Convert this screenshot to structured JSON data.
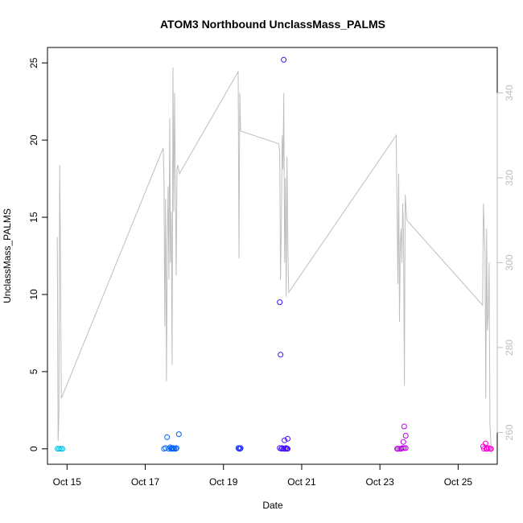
{
  "chart_data": {
    "type": "scatter",
    "title": "ATOM3 Northbound UnclassMass_PALMS",
    "xlabel": "Date",
    "ylabel": "UnclassMass_PALMS",
    "x_ticks": [
      "Oct 15",
      "Oct 17",
      "Oct 19",
      "Oct 21",
      "Oct 23",
      "Oct 25"
    ],
    "y_ticks": [
      "0",
      "5",
      "10",
      "15",
      "20",
      "25"
    ],
    "y2_ticks": [
      "260",
      "280",
      "300",
      "320",
      "340"
    ],
    "xlim": [
      "2023-10-14T12:00",
      "2023-10-26T00:00"
    ],
    "ylim": [
      -1,
      26
    ],
    "y2lim": [
      252.5,
      350.7
    ],
    "grid": false,
    "points": [
      {
        "x": "2023-10-14T18:14",
        "y": 0.0
      },
      {
        "x": "2023-10-14T19:12",
        "y": 0.0
      },
      {
        "x": "2023-10-14T20:10",
        "y": 0.0
      },
      {
        "x": "2023-10-14T21:07",
        "y": 0.0
      },
      {
        "x": "2023-10-17T11:31",
        "y": 0.0
      },
      {
        "x": "2023-10-17T12:29",
        "y": 0.05
      },
      {
        "x": "2023-10-17T13:26",
        "y": 0.75
      },
      {
        "x": "2023-10-17T14:24",
        "y": 0.0
      },
      {
        "x": "2023-10-17T15:22",
        "y": 0.1
      },
      {
        "x": "2023-10-17T15:50",
        "y": 0.0
      },
      {
        "x": "2023-10-17T16:19",
        "y": 0.05
      },
      {
        "x": "2023-10-17T16:48",
        "y": 0.0
      },
      {
        "x": "2023-10-17T17:17",
        "y": 0.05
      },
      {
        "x": "2023-10-17T17:46",
        "y": 0.0
      },
      {
        "x": "2023-10-17T18:43",
        "y": 0.0
      },
      {
        "x": "2023-10-17T19:12",
        "y": 0.05
      },
      {
        "x": "2023-10-17T20:38",
        "y": 0.95
      },
      {
        "x": "2023-10-19T09:07",
        "y": 0.05
      },
      {
        "x": "2023-10-19T09:36",
        "y": 0.0
      },
      {
        "x": "2023-10-19T10:05",
        "y": 0.0
      },
      {
        "x": "2023-10-19T10:34",
        "y": 0.05
      },
      {
        "x": "2023-10-20T10:34",
        "y": 0.05
      },
      {
        "x": "2023-10-20T10:34",
        "y": 9.5
      },
      {
        "x": "2023-10-20T11:02",
        "y": 6.1
      },
      {
        "x": "2023-10-20T11:31",
        "y": 0.0
      },
      {
        "x": "2023-10-20T12:00",
        "y": 0.05
      },
      {
        "x": "2023-10-20T12:58",
        "y": 25.2
      },
      {
        "x": "2023-10-20T12:58",
        "y": 0.0
      },
      {
        "x": "2023-10-20T13:26",
        "y": 0.55
      },
      {
        "x": "2023-10-20T13:55",
        "y": 0.0
      },
      {
        "x": "2023-10-20T14:24",
        "y": 0.05
      },
      {
        "x": "2023-10-20T14:53",
        "y": 0.0
      },
      {
        "x": "2023-10-20T15:22",
        "y": 0.65
      },
      {
        "x": "2023-10-20T15:22",
        "y": 0.0
      },
      {
        "x": "2023-10-23T10:34",
        "y": 0.0
      },
      {
        "x": "2023-10-23T11:02",
        "y": 0.0
      },
      {
        "x": "2023-10-23T12:00",
        "y": 0.0
      },
      {
        "x": "2023-10-23T12:58",
        "y": 0.0
      },
      {
        "x": "2023-10-23T13:55",
        "y": 0.05
      },
      {
        "x": "2023-10-23T14:24",
        "y": 0.45
      },
      {
        "x": "2023-10-23T14:53",
        "y": 1.45
      },
      {
        "x": "2023-10-23T14:53",
        "y": 0.05
      },
      {
        "x": "2023-10-23T15:50",
        "y": 0.85
      },
      {
        "x": "2023-10-23T15:50",
        "y": 0.05
      },
      {
        "x": "2023-10-25T15:22",
        "y": 0.15
      },
      {
        "x": "2023-10-25T15:50",
        "y": 0.0
      },
      {
        "x": "2023-10-25T16:48",
        "y": 0.35
      },
      {
        "x": "2023-10-25T17:17",
        "y": 0.0
      },
      {
        "x": "2023-10-25T17:46",
        "y": 0.0
      },
      {
        "x": "2023-10-25T18:43",
        "y": 0.05
      },
      {
        "x": "2023-10-25T19:41",
        "y": 0.0
      },
      {
        "x": "2023-10-25T20:10",
        "y": 0.0
      }
    ],
    "secondary_line": {
      "color": "#bebebe",
      "x": [
        "2023-10-14T18:00",
        "2023-10-14T18:30",
        "2023-10-14T19:00",
        "2023-10-14T19:30",
        "2023-10-14T20:00",
        "2023-10-14T20:30",
        "2023-10-17T11:00",
        "2023-10-17T11:30",
        "2023-10-17T12:00",
        "2023-10-17T12:30",
        "2023-10-17T13:00",
        "2023-10-17T13:30",
        "2023-10-17T14:00",
        "2023-10-17T14:30",
        "2023-10-17T15:00",
        "2023-10-17T15:30",
        "2023-10-17T16:00",
        "2023-10-17T16:30",
        "2023-10-17T17:00",
        "2023-10-17T17:30",
        "2023-10-17T18:00",
        "2023-10-17T18:30",
        "2023-10-17T19:00",
        "2023-10-17T19:30",
        "2023-10-17T20:00",
        "2023-10-17T20:30",
        "2023-10-17T21:00",
        "2023-10-19T09:00",
        "2023-10-19T09:30",
        "2023-10-19T10:00",
        "2023-10-19T10:30",
        "2023-10-20T10:00",
        "2023-10-20T10:30",
        "2023-10-20T11:00",
        "2023-10-20T11:30",
        "2023-10-20T12:00",
        "2023-10-20T12:30",
        "2023-10-20T13:00",
        "2023-10-20T13:30",
        "2023-10-20T14:00",
        "2023-10-20T14:30",
        "2023-10-20T15:00",
        "2023-10-20T15:30",
        "2023-10-20T16:00",
        "2023-10-23T10:00",
        "2023-10-23T10:30",
        "2023-10-23T11:00",
        "2023-10-23T11:30",
        "2023-10-23T12:00",
        "2023-10-23T12:30",
        "2023-10-23T13:00",
        "2023-10-23T13:30",
        "2023-10-23T14:00",
        "2023-10-23T14:30",
        "2023-10-23T15:00",
        "2023-10-23T15:30",
        "2023-10-23T16:00",
        "2023-10-23T16:30",
        "2023-10-25T15:00",
        "2023-10-25T15:30",
        "2023-10-25T16:00",
        "2023-10-25T16:30",
        "2023-10-25T17:00",
        "2023-10-25T17:30",
        "2023-10-25T18:00",
        "2023-10-25T18:30",
        "2023-10-25T19:00",
        "2023-10-25T19:30",
        "2023-10-25T20:00",
        "2023-10-25T20:30"
      ],
      "y": [
        306,
        258,
        264,
        323,
        300,
        268,
        327,
        320,
        285,
        315,
        272,
        304,
        318,
        296,
        334,
        300,
        312,
        276,
        346,
        312,
        340,
        318,
        297,
        322,
        323,
        322,
        321,
        345,
        301,
        340,
        331,
        328,
        326,
        296,
        308,
        330,
        322,
        340,
        300,
        320,
        292,
        325,
        304,
        293,
        330,
        314,
        295,
        321,
        286,
        305,
        308,
        300,
        314,
        307,
        271,
        316,
        313,
        310,
        290,
        314,
        308,
        302,
        268,
        308,
        284,
        288,
        300,
        262,
        258,
        255
      ]
    }
  }
}
